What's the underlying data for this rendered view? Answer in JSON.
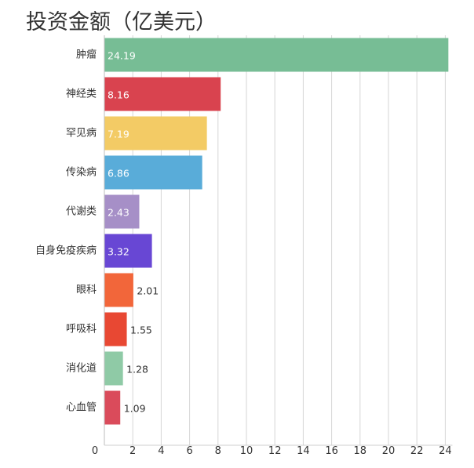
{
  "chart_data": {
    "type": "bar",
    "orientation": "horizontal",
    "title": "投资金额（亿美元）",
    "categories": [
      "肿瘤",
      "神经类",
      "罕见病",
      "传染病",
      "代谢类",
      "自身免疫疾病",
      "眼科",
      "呼吸科",
      "消化道",
      "心血管"
    ],
    "values": [
      24.19,
      8.16,
      7.19,
      6.86,
      2.43,
      3.32,
      2.01,
      1.55,
      1.28,
      1.09
    ],
    "value_labels": [
      "24.19",
      "8.16",
      "7.19",
      "6.86",
      "2.43",
      "3.32",
      "2.01",
      "1.55",
      "1.28",
      "1.09"
    ],
    "colors": [
      "#77bd95",
      "#d9434f",
      "#f3cb65",
      "#59acd9",
      "#a68fc7",
      "#6847d4",
      "#f2663a",
      "#e84833",
      "#8fcaa6",
      "#da4b5b"
    ],
    "xlim": [
      0,
      24.5
    ],
    "xticks": [
      "0",
      "2",
      "4",
      "6",
      "8",
      "10",
      "12",
      "14",
      "16",
      "18",
      "20",
      "22",
      "24"
    ],
    "grid": true,
    "legend": "none"
  }
}
